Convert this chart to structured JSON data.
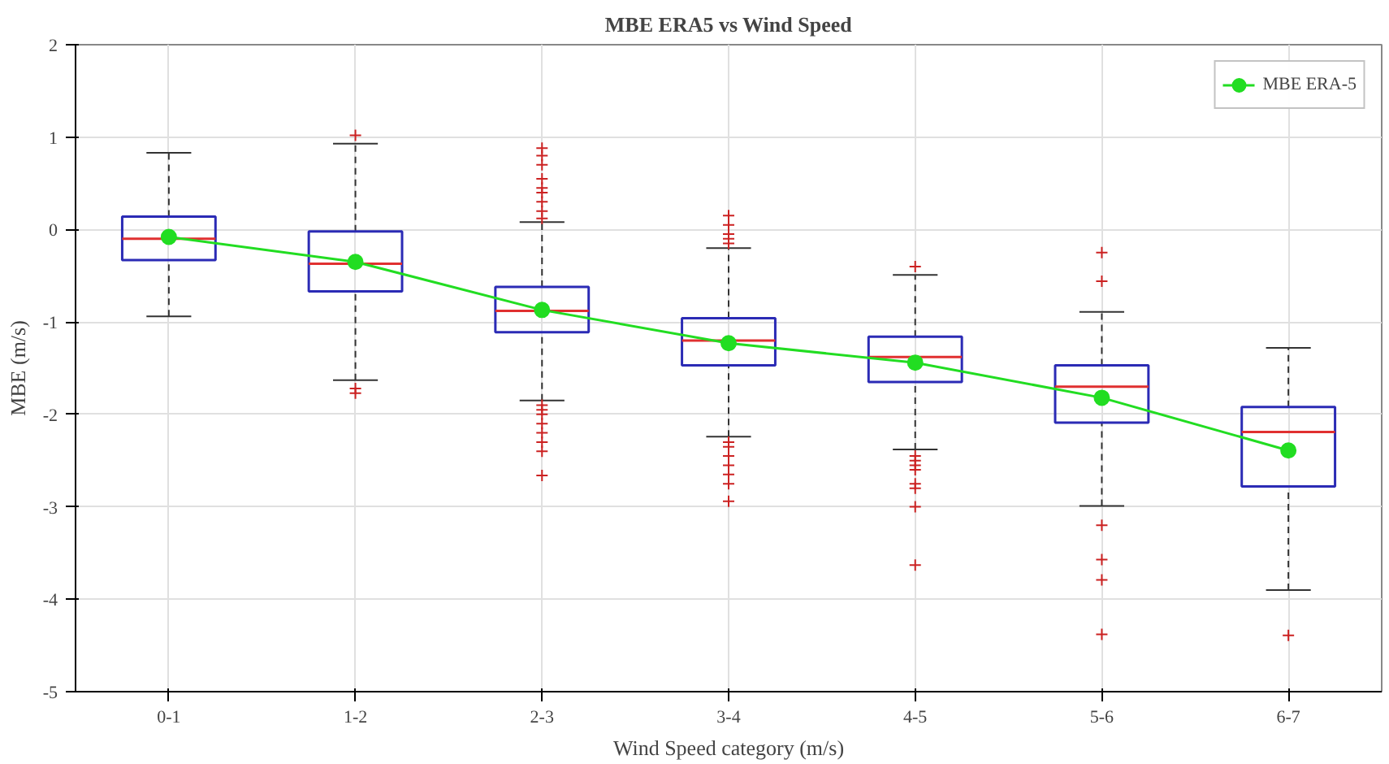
{
  "chart_data": {
    "type": "box",
    "title": "MBE ERA5 vs Wind Speed",
    "xlabel": "Wind Speed category (m/s)",
    "ylabel": "MBE (m/s)",
    "categories": [
      "0-1",
      "1-2",
      "2-3",
      "3-4",
      "4-5",
      "5-6",
      "6-7"
    ],
    "ylim": [
      -5,
      2
    ],
    "yticks": [
      -5,
      -4,
      -3,
      -2,
      -1,
      0,
      1,
      2
    ],
    "grid": true,
    "legend": "top right",
    "marker": "circle",
    "line_style": "solid",
    "series": [
      {
        "color": "#2b2bb5",
        "boxes": [
          {
            "low": -0.94,
            "q1": -0.33,
            "median": -0.1,
            "q3": 0.14,
            "high": 0.83
          },
          {
            "low": -1.63,
            "q1": -0.67,
            "median": -0.37,
            "q3": -0.02,
            "high": 0.93,
            "outliers": [
              1.02,
              -1.72,
              -1.77
            ]
          },
          {
            "low": -1.85,
            "q1": -1.11,
            "median": -0.88,
            "q3": -0.62,
            "high": 0.08,
            "outliers": [
              0.12,
              0.2,
              0.3,
              0.4,
              0.45,
              0.55,
              0.7,
              0.8,
              0.88,
              -1.9,
              -1.95,
              -2.0,
              -2.1,
              -2.2,
              -2.3,
              -2.4,
              -2.66
            ]
          },
          {
            "low": -2.24,
            "q1": -1.47,
            "median": -1.2,
            "q3": -0.96,
            "high": -0.2,
            "outliers": [
              -0.15,
              -0.1,
              -0.05,
              0.05,
              0.15,
              -2.3,
              -2.35,
              -2.45,
              -2.55,
              -2.65,
              -2.75,
              -2.94
            ]
          },
          {
            "low": -2.38,
            "q1": -1.65,
            "median": -1.38,
            "q3": -1.16,
            "high": -0.49,
            "outliers": [
              -0.4,
              -2.45,
              -2.5,
              -2.55,
              -2.6,
              -2.75,
              -2.8,
              -3.0,
              -3.63
            ]
          },
          {
            "low": -2.99,
            "q1": -2.09,
            "median": -1.7,
            "q3": -1.47,
            "high": -0.89,
            "outliers": [
              -0.25,
              -0.56,
              -3.2,
              -3.57,
              -3.79,
              -4.38
            ]
          },
          {
            "low": -3.9,
            "q1": -2.78,
            "median": -2.19,
            "q3": -1.92,
            "high": -1.28,
            "outliers": [
              -4.39
            ]
          }
        ]
      },
      {
        "type": "line",
        "name": "MBE ERA-5",
        "color": "#22dd22",
        "values": [
          -0.08,
          -0.35,
          -0.87,
          -1.23,
          -1.44,
          -1.82,
          -2.39
        ]
      }
    ]
  }
}
